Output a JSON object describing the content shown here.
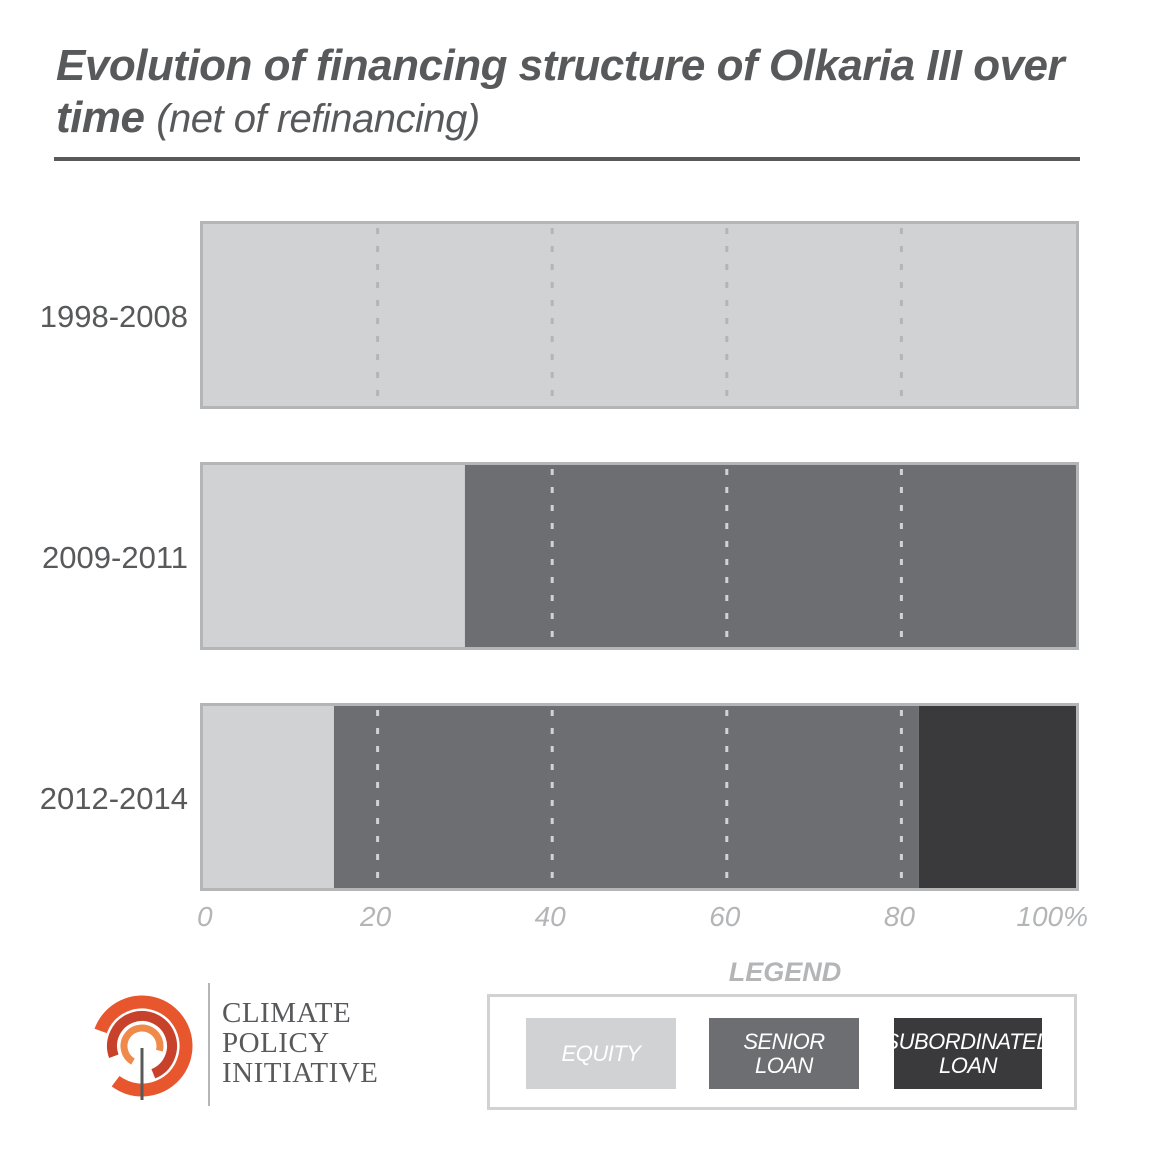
{
  "title": {
    "main": "Evolution of financing structure of Olkaria III over time",
    "sub": "(net of refinancing)"
  },
  "chart_data": {
    "type": "bar",
    "orientation": "horizontal",
    "stacked": true,
    "categories": [
      "1998-2008",
      "2009-2011",
      "2012-2014"
    ],
    "series": [
      {
        "name": "EQUITY",
        "color": "#d1d2d4",
        "values": [
          100,
          30,
          15
        ]
      },
      {
        "name": "SENIOR LOAN",
        "color": "#6d6e71",
        "values": [
          0,
          70,
          67
        ]
      },
      {
        "name": "SUBORDINATED LOAN",
        "color": "#3a3a3c",
        "values": [
          0,
          0,
          18
        ]
      }
    ],
    "xlim": [
      0,
      100
    ],
    "x_ticks": [
      "0",
      "20",
      "40",
      "60",
      "80",
      "100%"
    ],
    "x_tick_values": [
      0,
      20,
      40,
      60,
      80,
      100
    ],
    "grid": "dashed vertical",
    "legend_position": "bottom-right"
  },
  "legend": {
    "title": "LEGEND",
    "items": [
      {
        "line1": "EQUITY",
        "line2": ""
      },
      {
        "line1": "SENIOR",
        "line2": "LOAN"
      },
      {
        "line1": "SUBORDINATED",
        "line2": "LOAN"
      }
    ]
  },
  "logo": {
    "lines": [
      "CLIMATE",
      "POLICY",
      "INITIATIVE"
    ],
    "colors": [
      "#e8562e",
      "#c8412b",
      "#f08a4b"
    ]
  }
}
